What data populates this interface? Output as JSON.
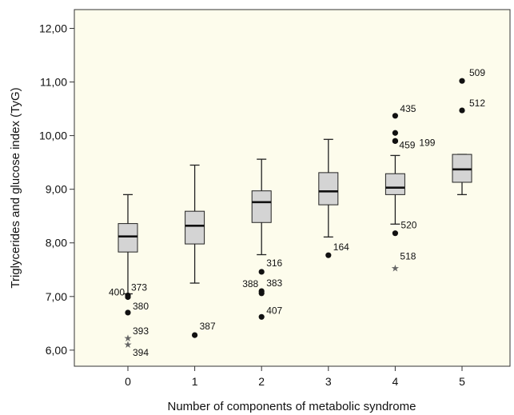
{
  "chart_data": {
    "type": "boxplot",
    "xlabel": "Number of components of metabolic syndrome",
    "ylabel": "Triglycerides and glucose index (TyG)",
    "ylim": [
      5.7,
      12.35
    ],
    "yticks": [
      "6,00",
      "7,00",
      "8,00",
      "9,00",
      "10,00",
      "11,00",
      "12,00"
    ],
    "ytick_values": [
      6,
      7,
      8,
      9,
      10,
      11,
      12
    ],
    "categories": [
      "0",
      "1",
      "2",
      "3",
      "4",
      "5"
    ],
    "grid": false,
    "colors": {
      "plot_bg": "#fdfcec",
      "box_fill": "#d4d4d4",
      "stroke": "#222222",
      "outlier": "#111111",
      "extreme": "#666666"
    },
    "boxes": [
      {
        "category": "0",
        "whisker_low": 7.05,
        "q1": 7.83,
        "median": 8.12,
        "q3": 8.36,
        "whisker_high": 8.9
      },
      {
        "category": "1",
        "whisker_low": 7.25,
        "q1": 7.98,
        "median": 8.32,
        "q3": 8.59,
        "whisker_high": 9.45
      },
      {
        "category": "2",
        "whisker_low": 7.78,
        "q1": 8.38,
        "median": 8.76,
        "q3": 8.97,
        "whisker_high": 9.56
      },
      {
        "category": "3",
        "whisker_low": 8.11,
        "q1": 8.71,
        "median": 8.96,
        "q3": 9.31,
        "whisker_high": 9.93
      },
      {
        "category": "4",
        "whisker_low": 8.35,
        "q1": 8.9,
        "median": 9.03,
        "q3": 9.29,
        "whisker_high": 9.63
      },
      {
        "category": "5",
        "whisker_low": 8.9,
        "q1": 9.13,
        "median": 9.37,
        "q3": 9.65,
        "whisker_high": 9.65
      }
    ],
    "outliers": [
      {
        "category": "0",
        "y": 7.02,
        "marker": "circle",
        "label": "373",
        "label_dx": 4,
        "label_dy": -10
      },
      {
        "category": "0",
        "y": 6.99,
        "marker": "circle",
        "label": "400",
        "label_dx": -24,
        "label_dy": -6
      },
      {
        "category": "0",
        "y": 6.7,
        "marker": "circle",
        "label": "380",
        "label_dx": 6,
        "label_dy": -8
      },
      {
        "category": "0",
        "y": 6.22,
        "marker": "star",
        "label": "393",
        "label_dx": 6,
        "label_dy": -9
      },
      {
        "category": "0",
        "y": 6.1,
        "marker": "star",
        "label": "394",
        "label_dx": 6,
        "label_dy": 10
      },
      {
        "category": "1",
        "y": 6.28,
        "marker": "circle",
        "label": "387",
        "label_dx": 6,
        "label_dy": -11
      },
      {
        "category": "2",
        "y": 7.46,
        "marker": "circle",
        "label": "316",
        "label_dx": 6,
        "label_dy": -11
      },
      {
        "category": "2",
        "y": 7.1,
        "marker": "circle",
        "label": "383",
        "label_dx": 6,
        "label_dy": -10
      },
      {
        "category": "2",
        "y": 7.06,
        "marker": "circle",
        "label": "388",
        "label_dx": -24,
        "label_dy": -12
      },
      {
        "category": "2",
        "y": 6.62,
        "marker": "circle",
        "label": "407",
        "label_dx": 6,
        "label_dy": -8
      },
      {
        "category": "3",
        "y": 7.77,
        "marker": "circle",
        "label": "164",
        "label_dx": 6,
        "label_dy": -10
      },
      {
        "category": "4",
        "y": 10.37,
        "marker": "circle",
        "label": "435",
        "label_dx": 6,
        "label_dy": -9
      },
      {
        "category": "4",
        "y": 10.05,
        "marker": "circle",
        "label": "",
        "label_dx": 0,
        "label_dy": 0
      },
      {
        "category": "4",
        "y": 9.9,
        "marker": "circle",
        "label": "459",
        "label_dx": 5,
        "label_dy": 5
      },
      {
        "category": "4",
        "y": 9.9,
        "marker": "circle",
        "label": "199",
        "label_dx": 30,
        "label_dy": 2
      },
      {
        "category": "4",
        "y": 8.18,
        "marker": "circle",
        "label": "520",
        "label_dx": 7,
        "label_dy": -10
      },
      {
        "category": "4",
        "y": 7.53,
        "marker": "star",
        "label": "518",
        "label_dx": 6,
        "label_dy": -15
      },
      {
        "category": "5",
        "y": 11.02,
        "marker": "circle",
        "label": "509",
        "label_dx": 9,
        "label_dy": -10
      },
      {
        "category": "5",
        "y": 10.47,
        "marker": "circle",
        "label": "512",
        "label_dx": 9,
        "label_dy": -9
      }
    ]
  }
}
